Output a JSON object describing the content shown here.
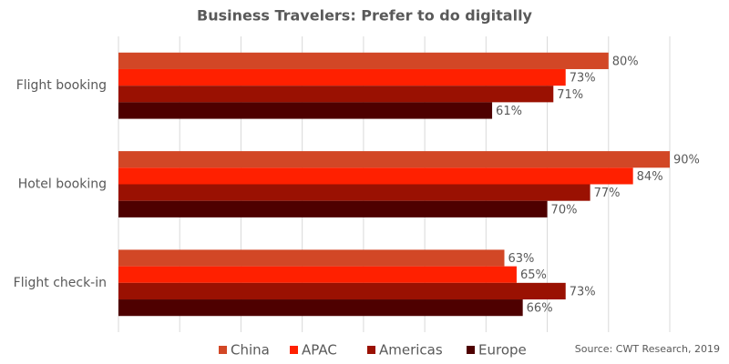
{
  "chart_data": {
    "type": "bar",
    "orientation": "horizontal",
    "title": "Business Travelers: Prefer to do digitally",
    "source": "Source: CWT Research, 2019",
    "categories": [
      "Flight booking",
      "Hotel booking",
      "Flight check-in"
    ],
    "series": [
      {
        "name": "China",
        "color": "#d24726",
        "values": [
          80,
          90,
          63
        ],
        "value_labels": [
          "80%",
          "90%",
          "63%"
        ]
      },
      {
        "name": "APAC",
        "color": "#ff2000",
        "values": [
          73,
          84,
          65
        ],
        "value_labels": [
          "73%",
          "84%",
          "65%"
        ]
      },
      {
        "name": "Americas",
        "color": "#9a1102",
        "values": [
          71,
          77,
          73
        ],
        "value_labels": [
          "71%",
          "77%",
          "73%"
        ]
      },
      {
        "name": "Europe",
        "color": "#4e0000",
        "values": [
          61,
          70,
          66
        ],
        "value_labels": [
          "61%",
          "70%",
          "66%"
        ]
      }
    ],
    "xlim": [
      0,
      90
    ],
    "xticks": [
      0,
      10,
      20,
      30,
      40,
      50,
      60,
      70,
      80,
      90
    ],
    "grid": true
  }
}
